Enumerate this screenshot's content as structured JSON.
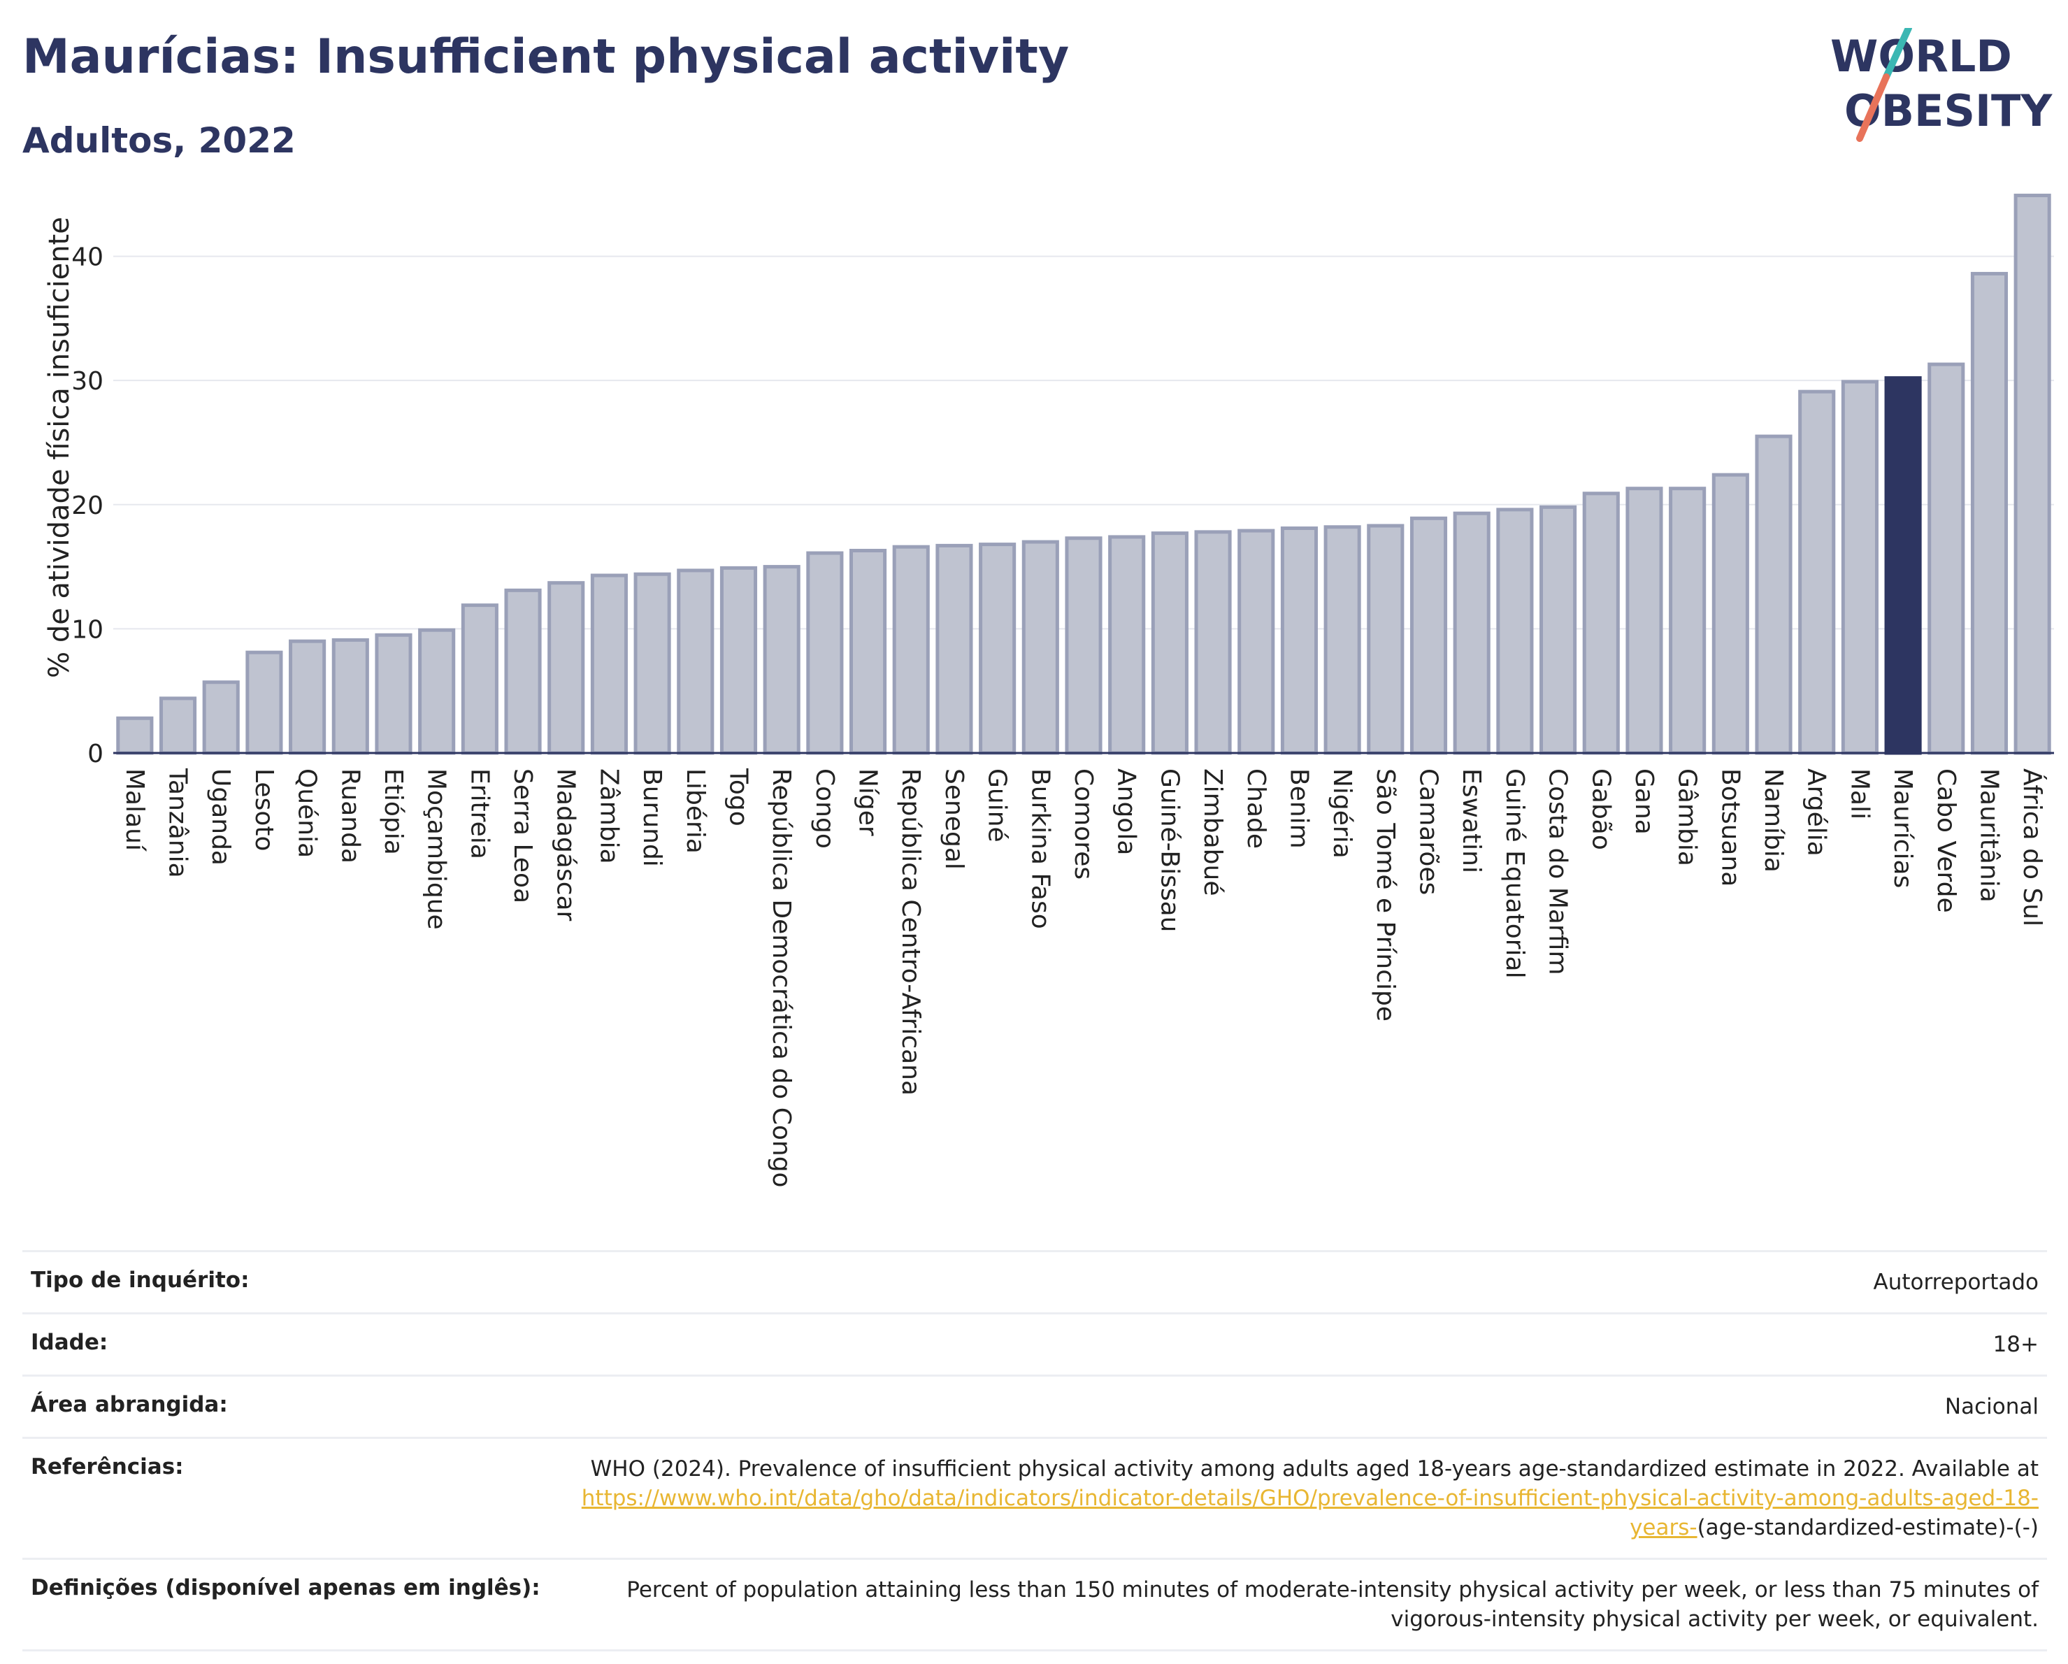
{
  "header": {
    "title": "Maurícias: Insufficient physical activity",
    "subtitle": "Adultos, 2022"
  },
  "logo": {
    "line1": "WORLD",
    "line2": "OBESITY",
    "accent_teal": "#3bb7b3",
    "accent_coral": "#e8735a",
    "text_color": "#2d3561"
  },
  "colors": {
    "bar_default": "#bfc3d0",
    "bar_border": "#9aa0b8",
    "bar_highlight": "#2d3561",
    "grid": "#e6e8ee"
  },
  "chart_data": {
    "type": "bar",
    "title": "Maurícias: Insufficient physical activity",
    "subtitle": "Adultos, 2022",
    "xlabel": "",
    "ylabel": "% de atividade física insuficiente",
    "ylim": [
      0,
      46
    ],
    "yticks": [
      0,
      10,
      20,
      30,
      40
    ],
    "grid": true,
    "highlight": "Maurícias",
    "categories": [
      "Malauí",
      "Tanzânia",
      "Uganda",
      "Lesoto",
      "Quénia",
      "Ruanda",
      "Etiópia",
      "Moçambique",
      "Eritreia",
      "Serra Leoa",
      "Madagáscar",
      "Zâmbia",
      "Burundi",
      "Libéria",
      "Togo",
      "República Democrática do Congo",
      "Congo",
      "Níger",
      "República Centro-Africana",
      "Senegal",
      "Guiné",
      "Burkina Faso",
      "Comores",
      "Angola",
      "Guiné-Bissau",
      "Zimbabué",
      "Chade",
      "Benim",
      "Nigéria",
      "São Tomé e Príncipe",
      "Camarões",
      "Eswatini",
      "Guiné Equatorial",
      "Costa do Marfim",
      "Gabão",
      "Gana",
      "Gâmbia",
      "Botsuana",
      "Namíbia",
      "Argélia",
      "Mali",
      "Maurícias",
      "Cabo Verde",
      "Mauritânia",
      "África do Sul"
    ],
    "values": [
      2.8,
      4.4,
      5.7,
      8.1,
      9.0,
      9.1,
      9.5,
      9.9,
      11.9,
      13.1,
      13.7,
      14.3,
      14.4,
      14.7,
      14.9,
      15.0,
      16.1,
      16.3,
      16.6,
      16.7,
      16.8,
      17.0,
      17.3,
      17.4,
      17.7,
      17.8,
      17.9,
      18.1,
      18.2,
      18.3,
      18.9,
      19.3,
      19.6,
      19.8,
      20.9,
      21.3,
      21.3,
      22.4,
      25.5,
      29.1,
      29.9,
      30.2,
      31.3,
      38.6,
      44.9
    ]
  },
  "info": {
    "rows": [
      {
        "label": "Tipo de inquérito:",
        "value": "Autorreportado"
      },
      {
        "label": "Idade:",
        "value": "18+"
      },
      {
        "label": "Área abrangida:",
        "value": "Nacional"
      },
      {
        "label": "Referências:",
        "value": "WHO (2024). Prevalence of insufficient physical activity among adults aged 18-years age-standardized estimate in 2022. Available at",
        "link": "https://www.who.int/data/gho/data/indicators/indicator-details/GHO/prevalence-of-insufficient-physical-activity-among-adults-aged-18-years-",
        "tail": "(age-standardized-estimate)-(-)"
      },
      {
        "label": "Definições (disponível apenas em inglês):",
        "value": "Percent of population attaining less than 150 minutes of moderate-intensity physical activity per week, or less than 75 minutes of vigorous-intensity physical activity per week, or equivalent."
      }
    ]
  }
}
